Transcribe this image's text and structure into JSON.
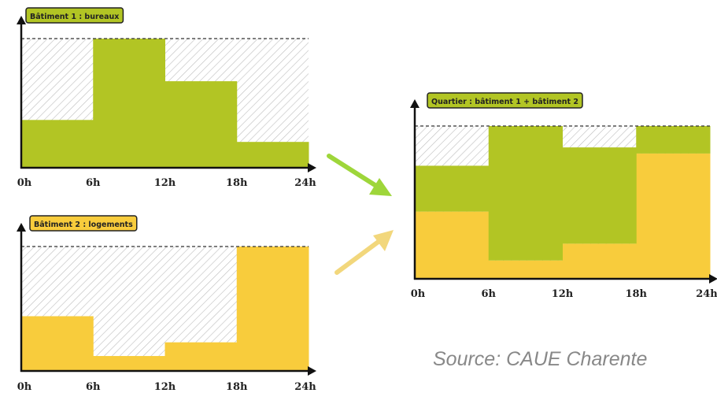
{
  "colors": {
    "bureaux": "#b2c524",
    "logements": "#f8cc3c",
    "hatch": "#bdbdbd",
    "axis": "#111111",
    "arrow_green": "#9ed63a",
    "arrow_yellow": "#f2d77c"
  },
  "chart_data": [
    {
      "type": "area",
      "title": "Bâtiment 1 : bureaux",
      "xticks": [
        "0h",
        "6h",
        "12h",
        "18h",
        "24h"
      ],
      "xlim": [
        0,
        24
      ],
      "ylim": [
        0,
        1
      ],
      "capacity": 1.0,
      "series": [
        {
          "key": "bureaux",
          "steps": [
            {
              "x0": 0,
              "x1": 6,
              "y": 0.37
            },
            {
              "x0": 6,
              "x1": 12,
              "y": 1.0
            },
            {
              "x0": 12,
              "x1": 18,
              "y": 0.67
            },
            {
              "x0": 18,
              "x1": 24,
              "y": 0.2
            }
          ]
        }
      ]
    },
    {
      "type": "area",
      "title": "Bâtiment 2 : logements",
      "xticks": [
        "0h",
        "6h",
        "12h",
        "18h",
        "24h"
      ],
      "xlim": [
        0,
        24
      ],
      "ylim": [
        0,
        1
      ],
      "capacity": 1.0,
      "series": [
        {
          "key": "logements",
          "steps": [
            {
              "x0": 0,
              "x1": 6,
              "y": 0.44
            },
            {
              "x0": 6,
              "x1": 12,
              "y": 0.12
            },
            {
              "x0": 12,
              "x1": 18,
              "y": 0.23
            },
            {
              "x0": 18,
              "x1": 24,
              "y": 1.0
            }
          ]
        }
      ]
    },
    {
      "type": "area",
      "title": "Quartier : bâtiment 1 + bâtiment 2",
      "xticks": [
        "0h",
        "6h",
        "12h",
        "18h",
        "24h"
      ],
      "xlim": [
        0,
        24
      ],
      "ylim": [
        0,
        1
      ],
      "capacity": 1.0,
      "stacked": true,
      "series": [
        {
          "key": "logements",
          "steps": [
            {
              "x0": 0,
              "x1": 6,
              "y": 0.44
            },
            {
              "x0": 6,
              "x1": 12,
              "y": 0.12
            },
            {
              "x0": 12,
              "x1": 18,
              "y": 0.23
            },
            {
              "x0": 18,
              "x1": 24,
              "y": 0.82
            }
          ]
        },
        {
          "key": "bureaux",
          "steps": [
            {
              "x0": 0,
              "x1": 6,
              "y": 0.3
            },
            {
              "x0": 6,
              "x1": 12,
              "y": 0.88
            },
            {
              "x0": 12,
              "x1": 18,
              "y": 0.63
            },
            {
              "x0": 18,
              "x1": 24,
              "y": 0.18
            }
          ]
        }
      ]
    }
  ],
  "source": "Source: CAUE Charente"
}
